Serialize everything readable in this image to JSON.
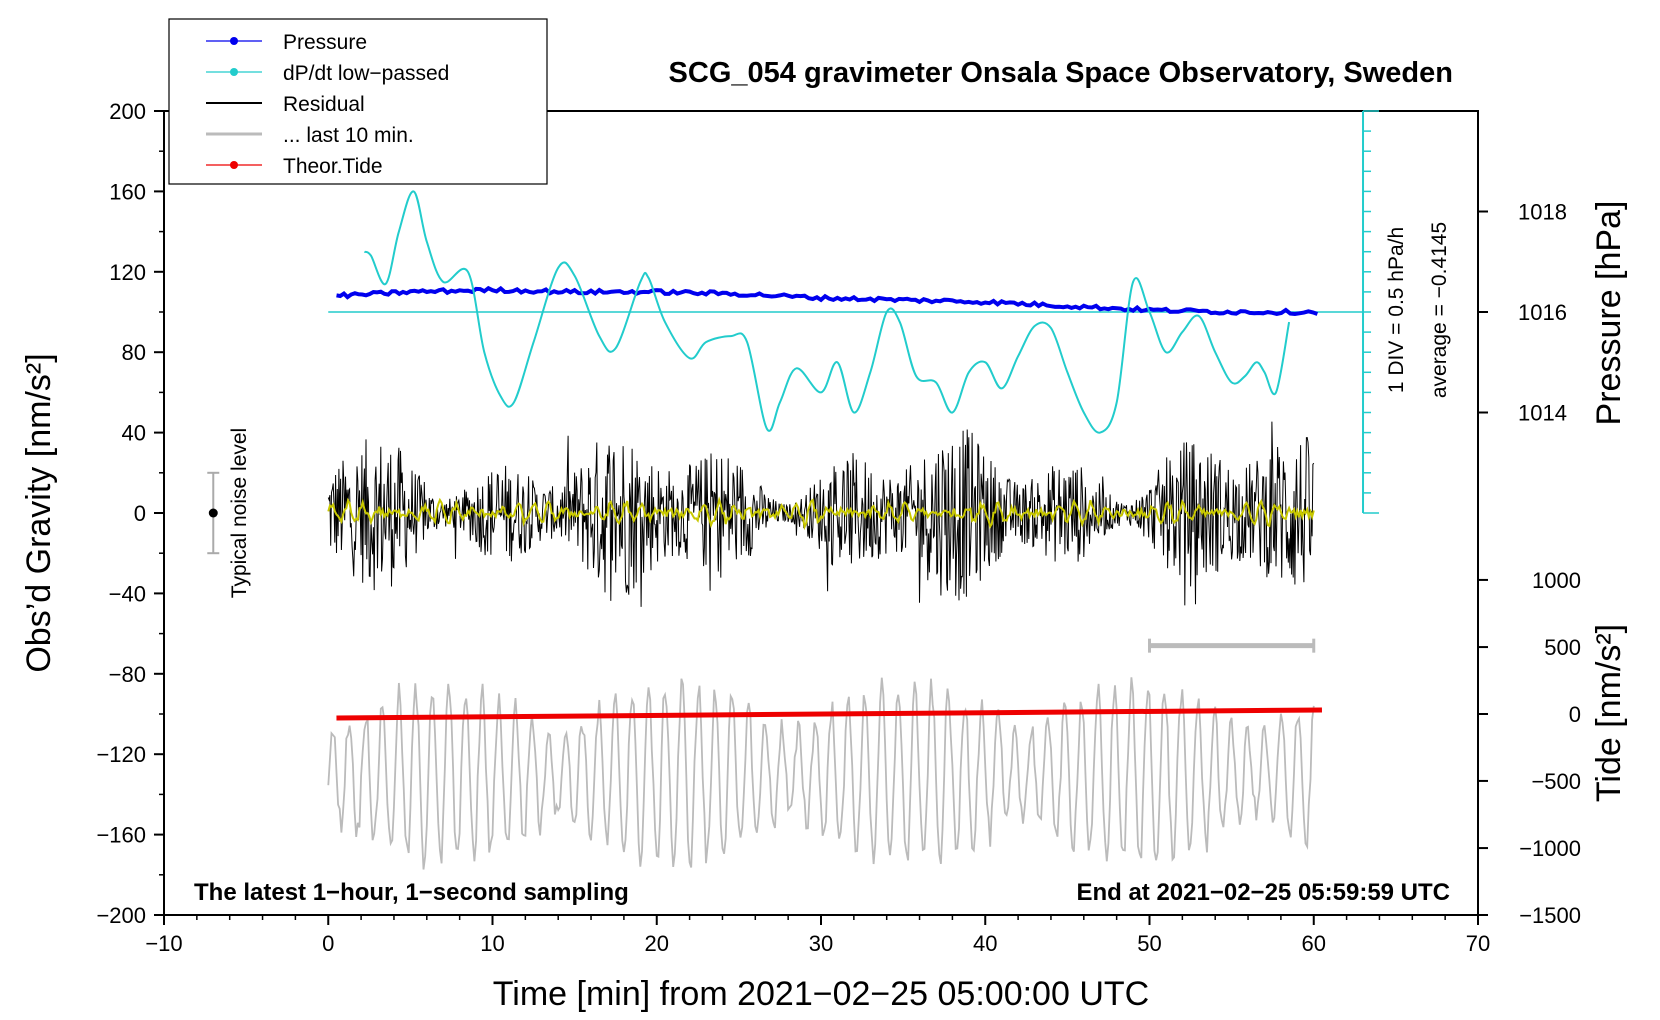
{
  "chart_data": {
    "type": "line",
    "title": "SCG_054 gravimeter Onsala Space Observatory, Sweden",
    "xlabel": "Time [min] from 2021−02−25 05:00:00 UTC",
    "ylabel_left": "Obs’d Gravity [nm/s²]",
    "ylabel_right_pressure": "Pressure [hPa]",
    "ylabel_right_tide": "Tide [nm/s²]",
    "xlim": [
      -10,
      70
    ],
    "ylim": [
      -200,
      200
    ],
    "x_ticks": [
      "−10",
      "0",
      "10",
      "20",
      "30",
      "40",
      "50",
      "60",
      "70"
    ],
    "y_ticks": [
      "200",
      "160",
      "120",
      "80",
      "40",
      "0",
      "−40",
      "−80",
      "−120",
      "−160",
      "−200"
    ],
    "pressure_ticks": [
      {
        "label": "1018",
        "gravity_equiv": 150
      },
      {
        "label": "1016",
        "gravity_equiv": 100
      },
      {
        "label": "1014",
        "gravity_equiv": 50
      }
    ],
    "tide_ticks": [
      {
        "label": "1000",
        "gravity_equiv": -33.3
      },
      {
        "label": "500",
        "gravity_equiv": -66.7
      },
      {
        "label": "0",
        "gravity_equiv": -100
      },
      {
        "label": "−500",
        "gravity_equiv": -133.3
      },
      {
        "label": "−1000",
        "gravity_equiv": -166.7
      },
      {
        "label": "−1500",
        "gravity_equiv": -200
      }
    ],
    "dpdt_scale": {
      "label1": "1 DIV = 0.5 hPa/h",
      "label2": "average = −0.4145",
      "top": 200,
      "bottom": 0,
      "center": 100,
      "x": 63
    },
    "noise_label": "Typical noise level",
    "noise_bar": {
      "x": -7,
      "low": -20,
      "high": 20
    },
    "ten_min_bar": {
      "x1": 50,
      "x2": 60,
      "y": -66
    },
    "annotation_left": "The latest 1−hour, 1−second sampling",
    "annotation_right": "End at 2021−02−25 05:59:59 UTC",
    "legend": [
      {
        "name": "Pressure",
        "color": "#0000ee",
        "marker": true
      },
      {
        "name": "dP/dt low−passed",
        "color": "#22cccc",
        "marker": true
      },
      {
        "name": "Residual",
        "color": "#000000",
        "marker": false
      },
      {
        "name": "... last 10 min.",
        "color": "#bbbbbb",
        "marker": false
      },
      {
        "name": "Theor.Tide",
        "color": "#ee0000",
        "marker": true
      }
    ],
    "series": [
      {
        "name": "Pressure",
        "color": "#0000ee",
        "x": [
          0.5,
          5,
          10,
          15,
          20,
          25,
          30,
          35,
          40,
          45,
          50,
          55,
          60.5
        ],
        "y": [
          108,
          110,
          111,
          110,
          110,
          109,
          107,
          106,
          105,
          103,
          101,
          100,
          100
        ]
      },
      {
        "name": "dP/dt low−passed",
        "color": "#22cccc",
        "x": [
          2.2,
          2.6,
          3.5,
          4.3,
          5.2,
          6.0,
          7.0,
          8.5,
          9.5,
          10.5,
          11.3,
          12.5,
          14.0,
          15.0,
          16.5,
          17.5,
          19.0,
          19.5,
          20.5,
          22.0,
          23.0,
          24.5,
          25.5,
          26.7,
          27.5,
          28.5,
          30.0,
          31.0,
          32.0,
          33.0,
          34.0,
          34.8,
          35.8,
          37.0,
          38.0,
          39.0,
          40.0,
          41.0,
          42.0,
          43.0,
          44.0,
          45.0,
          46.0,
          47.0,
          48.0,
          49.0,
          50.0,
          51.0,
          52.0,
          53.0,
          54.0,
          55.0,
          55.8,
          56.5,
          57.0,
          57.7,
          58.5
        ],
        "y": [
          130,
          128,
          114,
          140,
          160,
          135,
          115,
          120,
          80,
          58,
          55,
          85,
          122,
          118,
          88,
          82,
          115,
          117,
          95,
          77,
          85,
          88,
          85,
          42,
          55,
          72,
          60,
          75,
          50,
          70,
          100,
          95,
          68,
          65,
          50,
          70,
          75,
          62,
          78,
          93,
          92,
          70,
          50,
          40,
          55,
          115,
          100,
          80,
          90,
          98,
          80,
          65,
          68,
          75,
          70,
          60,
          95
        ]
      },
      {
        "name": "Residual",
        "color": "#000000",
        "x_range": [
          0,
          60
        ],
        "amplitude": 45
      },
      {
        "name": "Residual low−passed",
        "color": "#c8c800",
        "x_range": [
          0,
          60
        ],
        "amplitude": 5
      },
      {
        "name": "... last 10 min.",
        "color": "#bbbbbb",
        "x_range": [
          0,
          60
        ],
        "center": -130,
        "amplitude": 40
      },
      {
        "name": "Theor.Tide",
        "color": "#ee0000",
        "x": [
          0.5,
          60.5
        ],
        "y": [
          -102,
          -98
        ]
      }
    ]
  }
}
